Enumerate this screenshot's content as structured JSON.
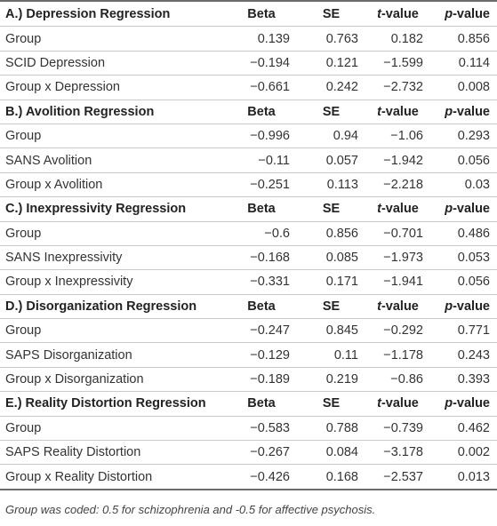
{
  "headers": {
    "beta": "Beta",
    "se": "SE",
    "t_italic": "t",
    "t_rest": "-value",
    "p_italic": "p",
    "p_rest": "-value"
  },
  "sections": [
    {
      "title": "A.) Depression Regression",
      "rows": [
        {
          "label": "Group",
          "beta": "0.139",
          "se": "0.763",
          "t": "0.182",
          "p": "0.856"
        },
        {
          "label": "SCID Depression",
          "beta": "−0.194",
          "se": "0.121",
          "t": "−1.599",
          "p": "0.114"
        },
        {
          "label": "Group x Depression",
          "beta": "−0.661",
          "se": "0.242",
          "t": "−2.732",
          "p": "0.008"
        }
      ]
    },
    {
      "title": "B.) Avolition Regression",
      "rows": [
        {
          "label": "Group",
          "beta": "−0.996",
          "se": "0.94",
          "t": "−1.06",
          "p": "0.293"
        },
        {
          "label": "SANS Avolition",
          "beta": "−0.11",
          "se": "0.057",
          "t": "−1.942",
          "p": "0.056"
        },
        {
          "label": "Group x Avolition",
          "beta": "−0.251",
          "se": "0.113",
          "t": "−2.218",
          "p": "0.03"
        }
      ]
    },
    {
      "title": "C.) Inexpressivity Regression",
      "rows": [
        {
          "label": "Group",
          "beta": "−0.6",
          "se": "0.856",
          "t": "−0.701",
          "p": "0.486"
        },
        {
          "label": "SANS Inexpressivity",
          "beta": "−0.168",
          "se": "0.085",
          "t": "−1.973",
          "p": "0.053"
        },
        {
          "label": "Group x Inexpressivity",
          "beta": "−0.331",
          "se": "0.171",
          "t": "−1.941",
          "p": "0.056"
        }
      ]
    },
    {
      "title": "D.) Disorganization Regression",
      "rows": [
        {
          "label": "Group",
          "beta": "−0.247",
          "se": "0.845",
          "t": "−0.292",
          "p": "0.771"
        },
        {
          "label": "SAPS Disorganization",
          "beta": "−0.129",
          "se": "0.11",
          "t": "−1.178",
          "p": "0.243"
        },
        {
          "label": "Group x Disorganization",
          "beta": "−0.189",
          "se": "0.219",
          "t": "−0.86",
          "p": "0.393"
        }
      ]
    },
    {
      "title": "E.) Reality Distortion Regression",
      "rows": [
        {
          "label": "Group",
          "beta": "−0.583",
          "se": "0.788",
          "t": "−0.739",
          "p": "0.462"
        },
        {
          "label": "SAPS Reality Distortion",
          "beta": "−0.267",
          "se": "0.084",
          "t": "−3.178",
          "p": "0.002"
        },
        {
          "label": "Group x Reality Distortion",
          "beta": "−0.426",
          "se": "0.168",
          "t": "−2.537",
          "p": "0.013"
        }
      ]
    }
  ],
  "footnote": "Group was coded: 0.5 for schizophrenia and -0.5 for affective psychosis."
}
